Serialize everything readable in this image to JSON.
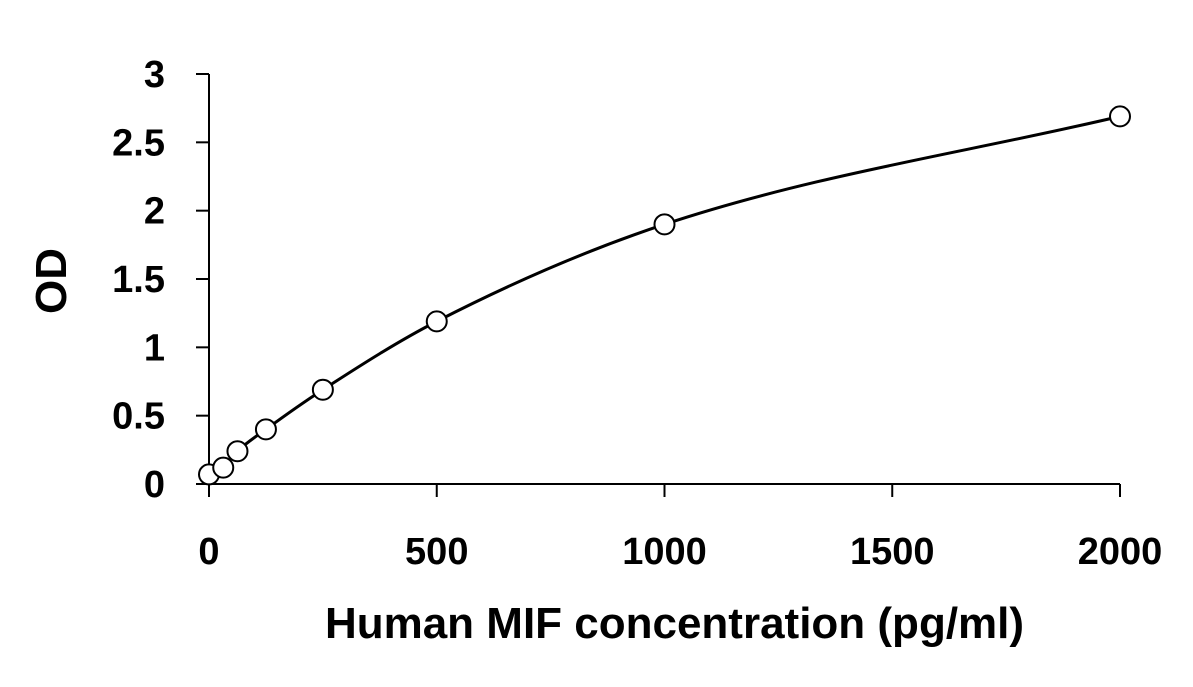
{
  "chart_data": {
    "type": "scatter",
    "title": "",
    "xlabel": "Human MIF concentration (pg/ml)",
    "ylabel": "OD",
    "xlim": [
      0,
      2000
    ],
    "ylim": [
      0,
      3
    ],
    "x_ticks": [
      0,
      500,
      1000,
      1500,
      2000
    ],
    "y_ticks": [
      0,
      0.5,
      1,
      1.5,
      2,
      2.5,
      3
    ],
    "x_tick_labels": [
      "0",
      "500",
      "1000",
      "1500",
      "2000"
    ],
    "y_tick_labels": [
      "0",
      "0.5",
      "1",
      "1.5",
      "2",
      "2.5",
      "3"
    ],
    "grid": false,
    "legend": "none",
    "series": [
      {
        "marker": "open-circle",
        "x": [
          0,
          31.25,
          62.5,
          125,
          250,
          500,
          1000,
          2000
        ],
        "y": [
          0.07,
          0.12,
          0.24,
          0.4,
          0.69,
          1.19,
          1.9,
          2.69
        ]
      }
    ],
    "fit_curve": {
      "type": "smooth",
      "color": "#000000"
    }
  }
}
